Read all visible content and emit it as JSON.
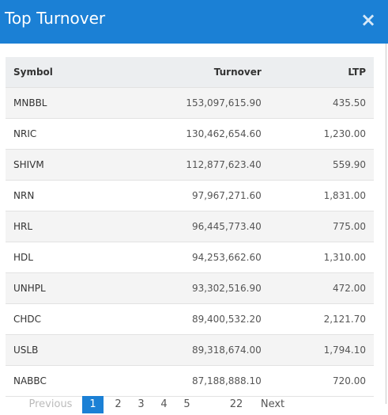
{
  "header": {
    "title": "Top Turnover",
    "close": "×"
  },
  "table": {
    "columns": [
      "Symbol",
      "Turnover",
      "LTP"
    ],
    "rows": [
      [
        "MNBBL",
        "153,097,615.90",
        "435.50"
      ],
      [
        "NRIC",
        "130,462,654.60",
        "1,230.00"
      ],
      [
        "SHIVM",
        "112,877,623.40",
        "559.90"
      ],
      [
        "NRN",
        "97,967,271.60",
        "1,831.00"
      ],
      [
        "HRL",
        "96,445,773.40",
        "775.00"
      ],
      [
        "HDL",
        "94,253,662.60",
        "1,310.00"
      ],
      [
        "UNHPL",
        "93,302,516.90",
        "472.00"
      ],
      [
        "CHDC",
        "89,400,532.20",
        "2,121.70"
      ],
      [
        "USLB",
        "89,318,674.00",
        "1,794.10"
      ],
      [
        "NABBC",
        "87,188,888.10",
        "720.00"
      ]
    ]
  },
  "pagination": {
    "previous": "Previous",
    "pages": [
      "1",
      "2",
      "3",
      "4",
      "5",
      "22"
    ],
    "next": "Next"
  }
}
